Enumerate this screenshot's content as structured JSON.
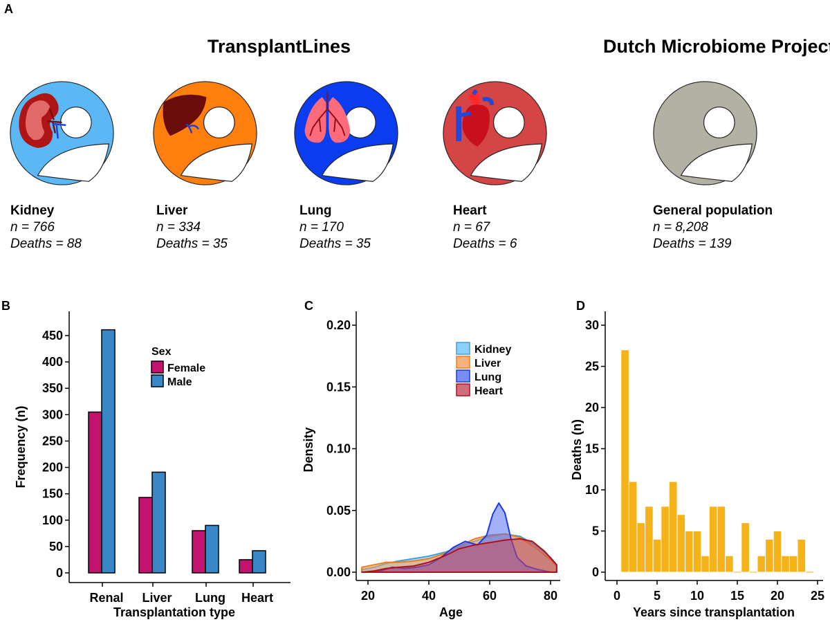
{
  "panel_a": {
    "letter": "A",
    "groups": [
      {
        "title": "TransplantLines"
      },
      {
        "title": "Dutch Microbiome Project"
      }
    ],
    "cohorts": [
      {
        "id": "kidney",
        "name": "Kidney",
        "n": "n = 766",
        "deaths": "Deaths = 88",
        "color": "#5bb8f5",
        "organ": "kidney-icon"
      },
      {
        "id": "liver",
        "name": "Liver",
        "n": "n = 334",
        "deaths": "Deaths = 35",
        "color": "#ff7f0e",
        "organ": "liver-icon"
      },
      {
        "id": "lung",
        "name": "Lung",
        "n": "n = 170",
        "deaths": "Deaths = 35",
        "color": "#0a3cf0",
        "organ": "lungs-icon"
      },
      {
        "id": "heart",
        "name": "Heart",
        "n": "n = 67",
        "deaths": "Deaths = 6",
        "color": "#d64545",
        "organ": "heart-icon"
      },
      {
        "id": "general",
        "name": "General population",
        "n": "n = 8,208",
        "deaths": "Deaths = 139",
        "color": "#b3b1a3",
        "organ": "person-icon"
      }
    ]
  },
  "chart_data": [
    {
      "panel": "B",
      "type": "bar",
      "title": "",
      "xlabel": "Transplantation type",
      "ylabel": "Frequency (n)",
      "ylim": [
        0,
        480
      ],
      "yticks": [
        0,
        50,
        100,
        150,
        200,
        250,
        300,
        350,
        400,
        450
      ],
      "categories": [
        "Renal",
        "Liver",
        "Lung",
        "Heart"
      ],
      "legend_title": "Sex",
      "legend_position": "top-right",
      "series": [
        {
          "name": "Female",
          "color": "#c2136f",
          "values": [
            305,
            143,
            80,
            25
          ]
        },
        {
          "name": "Male",
          "color": "#3a87c8",
          "values": [
            461,
            191,
            90,
            42
          ]
        }
      ]
    },
    {
      "panel": "C",
      "type": "area",
      "title": "",
      "xlabel": "Age",
      "ylabel": "Density",
      "xlim": [
        17,
        82
      ],
      "ylim": [
        0,
        0.21
      ],
      "xticks": [
        20,
        40,
        60,
        80
      ],
      "yticks": [
        "0.00",
        "0.05",
        "0.10",
        "0.15",
        "0.20"
      ],
      "legend_position": "top-right",
      "series": [
        {
          "name": "Kidney",
          "fill": "#6fc3f7",
          "stroke": "#3aa0e0",
          "x": [
            18,
            22,
            26,
            30,
            35,
            40,
            45,
            50,
            55,
            60,
            65,
            70,
            75,
            80,
            82
          ],
          "y": [
            0.002,
            0.004,
            0.007,
            0.009,
            0.011,
            0.013,
            0.016,
            0.02,
            0.025,
            0.029,
            0.031,
            0.029,
            0.022,
            0.012,
            0.006
          ]
        },
        {
          "name": "Liver",
          "fill": "#f5a05a",
          "stroke": "#ef7d1a",
          "x": [
            18,
            22,
            26,
            30,
            35,
            40,
            45,
            50,
            55,
            60,
            65,
            70,
            75,
            80,
            82
          ],
          "y": [
            0.004,
            0.006,
            0.008,
            0.008,
            0.009,
            0.011,
            0.015,
            0.021,
            0.027,
            0.03,
            0.031,
            0.028,
            0.02,
            0.01,
            0.005
          ]
        },
        {
          "name": "Lung",
          "fill": "#5870f5",
          "stroke": "#1e38e6",
          "x": [
            18,
            24,
            28,
            32,
            36,
            40,
            44,
            48,
            52,
            56,
            59,
            61,
            63,
            65,
            67,
            69,
            72,
            76,
            80,
            82
          ],
          "y": [
            0.0,
            0.001,
            0.004,
            0.003,
            0.004,
            0.006,
            0.012,
            0.02,
            0.025,
            0.022,
            0.03,
            0.047,
            0.056,
            0.048,
            0.027,
            0.012,
            0.005,
            0.002,
            0.0,
            0.0
          ]
        },
        {
          "name": "Heart",
          "fill": "#c44a5a",
          "stroke": "#b0101e",
          "x": [
            18,
            22,
            26,
            30,
            35,
            40,
            45,
            50,
            55,
            60,
            65,
            70,
            74,
            78,
            82
          ],
          "y": [
            0.0,
            0.001,
            0.003,
            0.004,
            0.005,
            0.008,
            0.013,
            0.019,
            0.022,
            0.024,
            0.026,
            0.027,
            0.025,
            0.017,
            0.006
          ]
        }
      ]
    },
    {
      "panel": "D",
      "type": "bar",
      "title": "",
      "xlabel": "Years since transplantation",
      "ylabel": "Deaths (n)",
      "xlim": [
        -1,
        26
      ],
      "ylim": [
        0,
        31
      ],
      "xticks": [
        0,
        5,
        10,
        15,
        20,
        25
      ],
      "yticks": [
        0,
        5,
        10,
        15,
        20,
        25,
        30
      ],
      "color": "#f5b319",
      "x": [
        1,
        2,
        3,
        4,
        5,
        6,
        7,
        8,
        9,
        10,
        11,
        12,
        13,
        14,
        15,
        16,
        17,
        18,
        19,
        20,
        21,
        22,
        23
      ],
      "values": [
        27,
        11,
        6,
        8,
        4,
        8,
        11,
        7,
        5,
        5,
        2,
        8,
        8,
        2,
        0,
        6,
        0,
        2,
        4,
        5,
        2,
        2,
        4
      ]
    }
  ]
}
